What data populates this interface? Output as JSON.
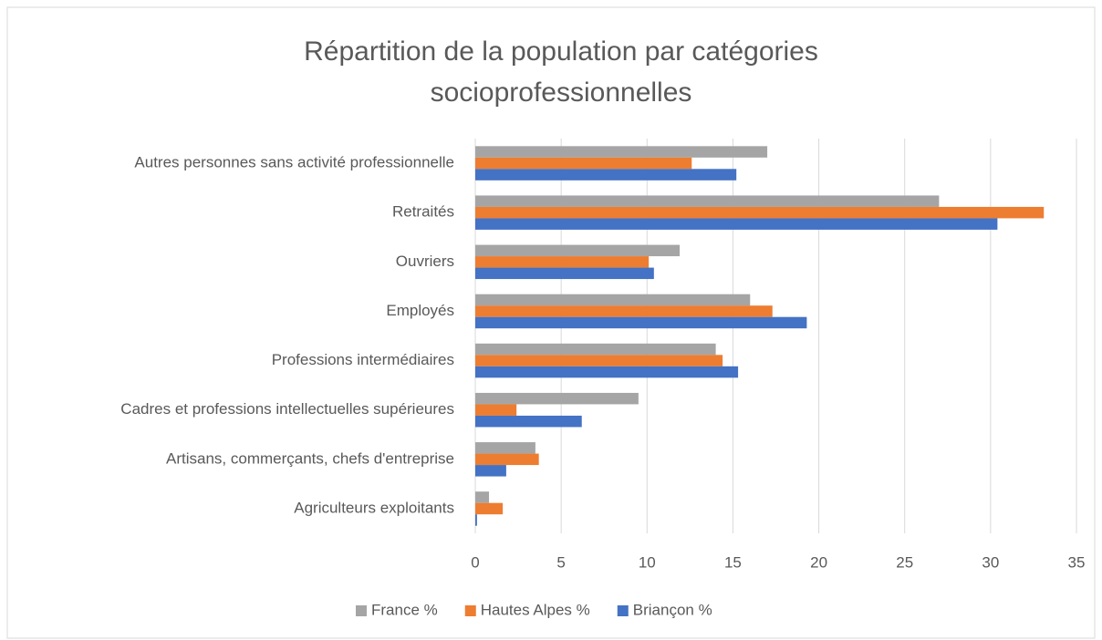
{
  "chart_data": {
    "type": "bar",
    "orientation": "horizontal",
    "title": "Répartition de la population par catégories",
    "title_line2": "socioprofessionnelles",
    "categories": [
      "Autres personnes sans activité professionnelle",
      "Retraités",
      "Ouvriers",
      "Employés",
      "Professions intermédiaires",
      "Cadres et professions intellectuelles supérieures",
      "Artisans, commerçants, chefs d'entreprise",
      "Agriculteurs exploitants"
    ],
    "series": [
      {
        "name": "France %",
        "color": "#a5a5a5",
        "values": [
          17,
          27,
          11.9,
          16,
          14,
          9.5,
          3.5,
          0.8
        ]
      },
      {
        "name": "Hautes Alpes %",
        "color": "#ed7d31",
        "values": [
          12.6,
          33.1,
          10.1,
          17.3,
          14.4,
          2.4,
          3.7,
          1.6
        ]
      },
      {
        "name": "Briançon %",
        "color": "#4472c4",
        "values": [
          15.2,
          30.4,
          10.4,
          19.3,
          15.3,
          6.2,
          1.8,
          0.1
        ]
      }
    ],
    "xlim": [
      0,
      35
    ],
    "xticks": [
      0,
      5,
      10,
      15,
      20,
      25,
      30,
      35
    ],
    "grid": true,
    "legend": "bottom"
  }
}
